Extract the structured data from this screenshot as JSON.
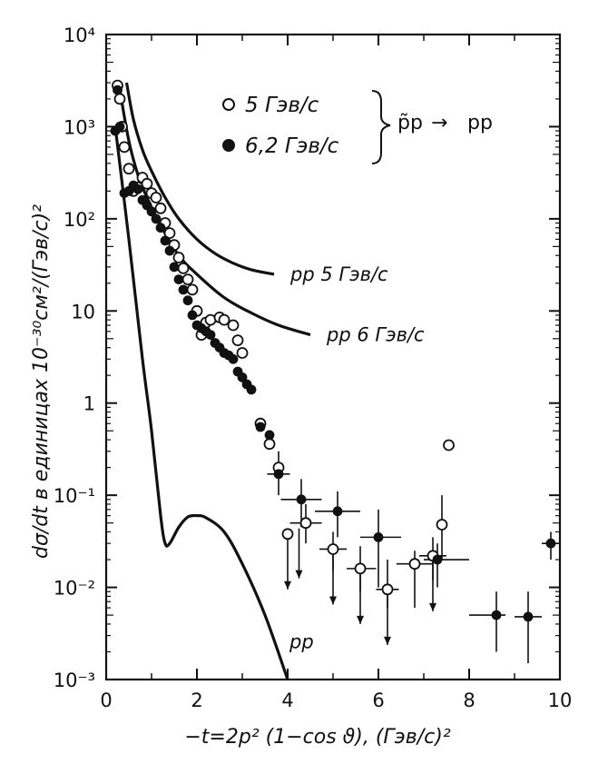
{
  "chart_data": {
    "type": "scatter",
    "xlabel": "−t=2p² (1−cos ϑ), (Гэв/с)²",
    "ylabel": "dσ/dt в единицах 10⁻³⁰см²/(Гэв/с)²",
    "x_ticks": [
      "0",
      "2",
      "4",
      "6",
      "8",
      "10"
    ],
    "y_ticks": [
      "10⁻³",
      "10⁻²",
      "10⁻¹",
      "1",
      "10",
      "10²",
      "10³",
      "10⁴"
    ],
    "y_ticks_exp": [
      -3,
      -2,
      -1,
      0,
      1,
      2,
      3,
      4
    ],
    "xlim": [
      0,
      10
    ],
    "ylim": [
      0.001,
      10000
    ],
    "y_scale": "log",
    "grid": false,
    "legend": {
      "open_label": "5 Гэв/с",
      "filled_label": "6,2 Гэв/с",
      "reaction_left": "p̃p",
      "reaction_arrow": "→",
      "reaction_right": "pp"
    },
    "curves": [
      {
        "name": "pp 5 Гэв/с",
        "label": "pp 5 Гэв/с",
        "x": [
          0.45,
          0.6,
          0.8,
          1.0,
          1.3,
          1.6,
          2.0,
          2.4,
          2.8,
          3.2,
          3.7
        ],
        "y": [
          3000,
          1200,
          560,
          330,
          170,
          100,
          60,
          42,
          33,
          28,
          25
        ]
      },
      {
        "name": "pp 6 Гэв/с",
        "label": "pp 6 Гэв/с",
        "x": [
          0.3,
          0.5,
          0.7,
          0.9,
          1.2,
          1.6,
          2.0,
          2.6,
          3.2,
          3.8,
          4.5
        ],
        "y": [
          2500,
          700,
          300,
          170,
          85,
          40,
          25,
          14,
          9.5,
          7,
          5.5
        ]
      },
      {
        "name": "pp",
        "label": "pp",
        "x": [
          0.2,
          0.5,
          0.8,
          1.0,
          1.2,
          1.3,
          1.4,
          1.6,
          1.8,
          2.0,
          2.2,
          2.6,
          3.0,
          3.5,
          4.0
        ],
        "y": [
          1000,
          60,
          3,
          0.5,
          0.06,
          0.03,
          0.03,
          0.045,
          0.058,
          0.06,
          0.057,
          0.04,
          0.018,
          0.005,
          0.001
        ]
      }
    ],
    "series": [
      {
        "name": "5 Гэв/с",
        "marker": "open",
        "x": [
          0.25,
          0.3,
          0.35,
          0.4,
          0.5,
          0.6,
          0.7,
          0.8,
          0.9,
          1.0,
          1.1,
          1.2,
          1.3,
          1.4,
          1.5,
          1.6,
          1.7,
          1.8,
          1.9,
          2.0,
          2.1,
          2.2,
          2.3,
          2.5,
          2.6,
          2.8,
          2.9,
          3.0,
          3.4,
          3.6,
          3.8,
          4.0,
          4.4,
          5.0,
          5.6,
          6.2,
          6.8,
          7.2,
          7.4,
          7.55
        ],
        "y": [
          2800,
          2000,
          1000,
          600,
          350,
          200,
          220,
          280,
          240,
          190,
          170,
          130,
          90,
          70,
          52,
          38,
          29,
          22,
          17,
          10,
          5.5,
          7.5,
          8,
          8.5,
          8,
          7,
          4.8,
          3.5,
          0.6,
          0.36,
          0.2,
          0.038,
          0.05,
          0.026,
          0.016,
          0.0095,
          0.018,
          0.022,
          0.048,
          0.35
        ]
      },
      {
        "name": "6,2 Гэв/с",
        "marker": "filled",
        "x": [
          0.2,
          0.25,
          0.3,
          0.4,
          0.5,
          0.6,
          0.7,
          0.8,
          0.9,
          1.0,
          1.1,
          1.2,
          1.3,
          1.4,
          1.5,
          1.6,
          1.7,
          1.8,
          1.9,
          2.0,
          2.1,
          2.2,
          2.3,
          2.4,
          2.5,
          2.6,
          2.7,
          2.8,
          2.9,
          3.0,
          3.1,
          3.2,
          3.4,
          3.6,
          3.8,
          4.3,
          5.1,
          6.0,
          7.3,
          8.6,
          9.3,
          9.8
        ],
        "y": [
          900,
          2500,
          1000,
          190,
          200,
          230,
          210,
          160,
          140,
          120,
          100,
          80,
          58,
          45,
          30,
          22,
          17,
          13,
          9,
          7,
          6.5,
          6,
          5.5,
          4.5,
          4,
          3.5,
          3.3,
          3,
          2.2,
          1.9,
          1.6,
          1.4,
          0.55,
          0.45,
          0.17,
          0.09,
          0.067,
          0.035,
          0.02,
          0.005,
          0.0048,
          0.03
        ]
      }
    ],
    "error_bars": [
      {
        "x": 3.8,
        "y": 0.17,
        "xlo": 3.55,
        "xhi": 4.05,
        "ylo": 0.1,
        "yhi": 0.3
      },
      {
        "x": 4.3,
        "y": 0.09,
        "xlo": 3.85,
        "xhi": 4.75,
        "ylo": 0.045,
        "yhi": 0.15
      },
      {
        "x": 4.4,
        "y": 0.05,
        "xlo": 4.05,
        "xhi": 4.75,
        "ylo": 0.03,
        "yhi": 0.08
      },
      {
        "x": 5.1,
        "y": 0.067,
        "xlo": 4.6,
        "xhi": 5.6,
        "ylo": 0.035,
        "yhi": 0.11
      },
      {
        "x": 5.0,
        "y": 0.026,
        "xlo": 4.7,
        "xhi": 5.3,
        "ylo": 0.015,
        "yhi": 0.04
      },
      {
        "x": 5.6,
        "y": 0.016,
        "xlo": 5.3,
        "xhi": 5.95,
        "ylo": 0.009,
        "yhi": 0.028
      },
      {
        "x": 6.0,
        "y": 0.035,
        "xlo": 5.6,
        "xhi": 6.5,
        "ylo": 0.01,
        "yhi": 0.07
      },
      {
        "x": 6.2,
        "y": 0.0095,
        "xlo": 5.95,
        "xhi": 6.45,
        "ylo": 0.006,
        "yhi": 0.02
      },
      {
        "x": 6.8,
        "y": 0.018,
        "xlo": 6.4,
        "xhi": 7.2,
        "ylo": 0.006,
        "yhi": 0.025
      },
      {
        "x": 7.2,
        "y": 0.022,
        "xlo": 6.9,
        "xhi": 7.5,
        "ylo": 0.012,
        "yhi": 0.035
      },
      {
        "x": 7.3,
        "y": 0.02,
        "xlo": 7.0,
        "xhi": 8.0,
        "ylo": 0.01,
        "yhi": 0.03
      },
      {
        "x": 7.4,
        "y": 0.048,
        "xlo": 7.3,
        "xhi": 7.5,
        "ylo": 0.02,
        "yhi": 0.1
      },
      {
        "x": 8.6,
        "y": 0.005,
        "xlo": 8.0,
        "xhi": 8.8,
        "ylo": 0.002,
        "yhi": 0.009
      },
      {
        "x": 9.3,
        "y": 0.0048,
        "xlo": 9.0,
        "xhi": 9.6,
        "ylo": 0.0015,
        "yhi": 0.009
      },
      {
        "x": 9.8,
        "y": 0.03,
        "xlo": 9.6,
        "xhi": 10.0,
        "ylo": 0.02,
        "yhi": 0.04
      }
    ],
    "upper_limits": [
      {
        "x": 4.0,
        "y": 0.038
      },
      {
        "x": 4.25,
        "y": 0.05
      },
      {
        "x": 5.0,
        "y": 0.026
      },
      {
        "x": 5.6,
        "y": 0.016
      },
      {
        "x": 6.2,
        "y": 0.0095
      },
      {
        "x": 7.2,
        "y": 0.022
      }
    ]
  }
}
